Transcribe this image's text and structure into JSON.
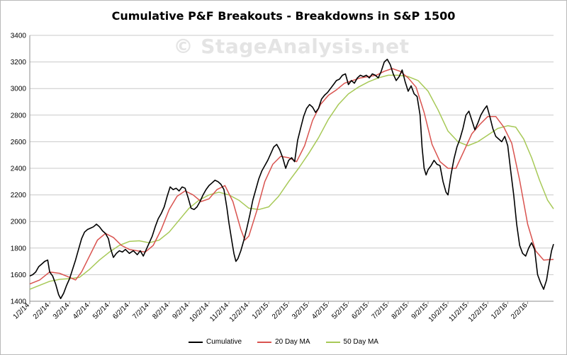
{
  "chart_data": {
    "type": "line",
    "title": "Cumulative P&F Breakouts - Breakdowns in S&P 1500",
    "watermark": "© StageAnalysis.net",
    "xlabel": "",
    "ylabel": "",
    "ylim": [
      1400,
      3400
    ],
    "yticks": [
      1400,
      1600,
      1800,
      2000,
      2200,
      2400,
      2600,
      2800,
      3000,
      3200,
      3400
    ],
    "grid": "horizontal",
    "legend_position": "bottom",
    "x_tick_labels": [
      "1/2/14",
      "2/2/14",
      "3/2/14",
      "4/2/14",
      "5/2/14",
      "6/2/14",
      "7/2/14",
      "8/2/14",
      "9/2/14",
      "10/2/14",
      "11/2/14",
      "12/2/14",
      "1/2/15",
      "2/2/15",
      "3/2/15",
      "4/2/15",
      "5/2/15",
      "6/2/15",
      "7/2/15",
      "8/2/15",
      "9/2/15",
      "10/2/15",
      "11/2/15",
      "12/2/15",
      "1/2/16",
      "2/2/16"
    ],
    "x_range_months": [
      0,
      26.3
    ],
    "series": [
      {
        "name": "Cumulative",
        "color": "#000000",
        "points": [
          [
            0,
            1590
          ],
          [
            0.15,
            1600
          ],
          [
            0.3,
            1620
          ],
          [
            0.45,
            1660
          ],
          [
            0.6,
            1680
          ],
          [
            0.75,
            1700
          ],
          [
            0.9,
            1710
          ],
          [
            1.0,
            1620
          ],
          [
            1.15,
            1590
          ],
          [
            1.3,
            1530
          ],
          [
            1.45,
            1450
          ],
          [
            1.55,
            1420
          ],
          [
            1.7,
            1460
          ],
          [
            1.85,
            1520
          ],
          [
            2.0,
            1570
          ],
          [
            2.15,
            1640
          ],
          [
            2.3,
            1710
          ],
          [
            2.45,
            1790
          ],
          [
            2.6,
            1870
          ],
          [
            2.75,
            1920
          ],
          [
            2.9,
            1940
          ],
          [
            3.05,
            1950
          ],
          [
            3.2,
            1960
          ],
          [
            3.35,
            1980
          ],
          [
            3.5,
            1960
          ],
          [
            3.65,
            1930
          ],
          [
            3.8,
            1910
          ],
          [
            3.95,
            1870
          ],
          [
            4.05,
            1800
          ],
          [
            4.2,
            1730
          ],
          [
            4.35,
            1760
          ],
          [
            4.5,
            1780
          ],
          [
            4.65,
            1770
          ],
          [
            4.8,
            1790
          ],
          [
            5.0,
            1760
          ],
          [
            5.2,
            1780
          ],
          [
            5.4,
            1750
          ],
          [
            5.55,
            1780
          ],
          [
            5.7,
            1740
          ],
          [
            5.85,
            1790
          ],
          [
            6.0,
            1840
          ],
          [
            6.15,
            1890
          ],
          [
            6.3,
            1960
          ],
          [
            6.45,
            2020
          ],
          [
            6.6,
            2060
          ],
          [
            6.75,
            2110
          ],
          [
            6.9,
            2190
          ],
          [
            7.05,
            2260
          ],
          [
            7.2,
            2240
          ],
          [
            7.35,
            2250
          ],
          [
            7.5,
            2230
          ],
          [
            7.65,
            2260
          ],
          [
            7.8,
            2250
          ],
          [
            7.95,
            2180
          ],
          [
            8.1,
            2100
          ],
          [
            8.25,
            2090
          ],
          [
            8.4,
            2110
          ],
          [
            8.55,
            2150
          ],
          [
            8.7,
            2200
          ],
          [
            8.85,
            2240
          ],
          [
            9.0,
            2270
          ],
          [
            9.15,
            2290
          ],
          [
            9.3,
            2310
          ],
          [
            9.45,
            2300
          ],
          [
            9.6,
            2280
          ],
          [
            9.75,
            2240
          ],
          [
            9.9,
            2100
          ],
          [
            10.0,
            1990
          ],
          [
            10.15,
            1850
          ],
          [
            10.25,
            1760
          ],
          [
            10.35,
            1700
          ],
          [
            10.45,
            1720
          ],
          [
            10.6,
            1780
          ],
          [
            10.75,
            1860
          ],
          [
            10.9,
            1950
          ],
          [
            11.05,
            2050
          ],
          [
            11.2,
            2160
          ],
          [
            11.35,
            2240
          ],
          [
            11.5,
            2320
          ],
          [
            11.65,
            2380
          ],
          [
            11.8,
            2420
          ],
          [
            11.95,
            2460
          ],
          [
            12.1,
            2510
          ],
          [
            12.25,
            2560
          ],
          [
            12.4,
            2580
          ],
          [
            12.55,
            2540
          ],
          [
            12.7,
            2480
          ],
          [
            12.85,
            2400
          ],
          [
            13.0,
            2460
          ],
          [
            13.15,
            2480
          ],
          [
            13.3,
            2450
          ],
          [
            13.45,
            2610
          ],
          [
            13.6,
            2700
          ],
          [
            13.75,
            2790
          ],
          [
            13.9,
            2850
          ],
          [
            14.05,
            2880
          ],
          [
            14.2,
            2860
          ],
          [
            14.35,
            2820
          ],
          [
            14.5,
            2850
          ],
          [
            14.65,
            2920
          ],
          [
            14.8,
            2950
          ],
          [
            14.95,
            2970
          ],
          [
            15.1,
            3000
          ],
          [
            15.25,
            3030
          ],
          [
            15.4,
            3060
          ],
          [
            15.55,
            3070
          ],
          [
            15.7,
            3100
          ],
          [
            15.85,
            3110
          ],
          [
            16.0,
            3030
          ],
          [
            16.15,
            3060
          ],
          [
            16.3,
            3040
          ],
          [
            16.45,
            3080
          ],
          [
            16.6,
            3100
          ],
          [
            16.75,
            3090
          ],
          [
            16.9,
            3100
          ],
          [
            17.05,
            3080
          ],
          [
            17.2,
            3110
          ],
          [
            17.35,
            3100
          ],
          [
            17.5,
            3080
          ],
          [
            17.65,
            3130
          ],
          [
            17.8,
            3200
          ],
          [
            17.95,
            3220
          ],
          [
            18.1,
            3180
          ],
          [
            18.25,
            3110
          ],
          [
            18.4,
            3060
          ],
          [
            18.55,
            3090
          ],
          [
            18.7,
            3140
          ],
          [
            18.85,
            3050
          ],
          [
            19.0,
            2980
          ],
          [
            19.15,
            3020
          ],
          [
            19.3,
            2960
          ],
          [
            19.45,
            2940
          ],
          [
            19.6,
            2800
          ],
          [
            19.7,
            2560
          ],
          [
            19.8,
            2400
          ],
          [
            19.9,
            2350
          ],
          [
            20.0,
            2390
          ],
          [
            20.15,
            2420
          ],
          [
            20.3,
            2460
          ],
          [
            20.45,
            2430
          ],
          [
            20.6,
            2420
          ],
          [
            20.75,
            2300
          ],
          [
            20.9,
            2220
          ],
          [
            21.0,
            2200
          ],
          [
            21.15,
            2350
          ],
          [
            21.3,
            2470
          ],
          [
            21.45,
            2560
          ],
          [
            21.6,
            2620
          ],
          [
            21.75,
            2700
          ],
          [
            21.9,
            2800
          ],
          [
            22.05,
            2830
          ],
          [
            22.2,
            2760
          ],
          [
            22.35,
            2690
          ],
          [
            22.5,
            2740
          ],
          [
            22.65,
            2800
          ],
          [
            22.8,
            2840
          ],
          [
            22.95,
            2870
          ],
          [
            23.1,
            2790
          ],
          [
            23.25,
            2700
          ],
          [
            23.4,
            2640
          ],
          [
            23.55,
            2620
          ],
          [
            23.7,
            2600
          ],
          [
            23.85,
            2640
          ],
          [
            24.0,
            2570
          ],
          [
            24.15,
            2380
          ],
          [
            24.3,
            2200
          ],
          [
            24.45,
            1980
          ],
          [
            24.6,
            1820
          ],
          [
            24.75,
            1760
          ],
          [
            24.9,
            1740
          ],
          [
            25.05,
            1800
          ],
          [
            25.2,
            1840
          ],
          [
            25.35,
            1790
          ],
          [
            25.5,
            1600
          ],
          [
            25.65,
            1540
          ],
          [
            25.8,
            1490
          ],
          [
            25.95,
            1560
          ],
          [
            26.1,
            1700
          ],
          [
            26.2,
            1780
          ],
          [
            26.3,
            1830
          ]
        ]
      },
      {
        "name": "20 Day MA",
        "color": "#d9534f",
        "points": [
          [
            0,
            1530
          ],
          [
            0.5,
            1560
          ],
          [
            1.0,
            1620
          ],
          [
            1.5,
            1610
          ],
          [
            2.0,
            1580
          ],
          [
            2.3,
            1560
          ],
          [
            2.6,
            1620
          ],
          [
            3.0,
            1740
          ],
          [
            3.4,
            1860
          ],
          [
            3.8,
            1910
          ],
          [
            4.2,
            1880
          ],
          [
            4.6,
            1820
          ],
          [
            5.0,
            1790
          ],
          [
            5.4,
            1780
          ],
          [
            5.8,
            1770
          ],
          [
            6.2,
            1820
          ],
          [
            6.6,
            1940
          ],
          [
            7.0,
            2090
          ],
          [
            7.4,
            2190
          ],
          [
            7.8,
            2230
          ],
          [
            8.2,
            2200
          ],
          [
            8.6,
            2150
          ],
          [
            9.0,
            2170
          ],
          [
            9.4,
            2240
          ],
          [
            9.8,
            2270
          ],
          [
            10.2,
            2150
          ],
          [
            10.6,
            1940
          ],
          [
            10.8,
            1860
          ],
          [
            11.0,
            1890
          ],
          [
            11.4,
            2080
          ],
          [
            11.8,
            2300
          ],
          [
            12.2,
            2430
          ],
          [
            12.6,
            2490
          ],
          [
            13.0,
            2480
          ],
          [
            13.4,
            2450
          ],
          [
            13.8,
            2570
          ],
          [
            14.2,
            2760
          ],
          [
            14.6,
            2880
          ],
          [
            15.0,
            2950
          ],
          [
            15.4,
            2990
          ],
          [
            15.8,
            3040
          ],
          [
            16.2,
            3060
          ],
          [
            16.6,
            3080
          ],
          [
            17.0,
            3090
          ],
          [
            17.4,
            3100
          ],
          [
            17.8,
            3130
          ],
          [
            18.2,
            3150
          ],
          [
            18.6,
            3130
          ],
          [
            19.0,
            3080
          ],
          [
            19.4,
            3010
          ],
          [
            19.8,
            2820
          ],
          [
            20.2,
            2580
          ],
          [
            20.6,
            2450
          ],
          [
            21.0,
            2400
          ],
          [
            21.4,
            2400
          ],
          [
            21.8,
            2530
          ],
          [
            22.2,
            2660
          ],
          [
            22.6,
            2730
          ],
          [
            23.0,
            2790
          ],
          [
            23.4,
            2790
          ],
          [
            23.8,
            2710
          ],
          [
            24.2,
            2590
          ],
          [
            24.6,
            2310
          ],
          [
            25.0,
            1980
          ],
          [
            25.4,
            1780
          ],
          [
            25.8,
            1710
          ],
          [
            26.3,
            1715
          ]
        ]
      },
      {
        "name": "50 Day MA",
        "color": "#a7c957",
        "points": [
          [
            0,
            1490
          ],
          [
            0.5,
            1520
          ],
          [
            1.0,
            1550
          ],
          [
            1.5,
            1565
          ],
          [
            2.0,
            1570
          ],
          [
            2.5,
            1580
          ],
          [
            3.0,
            1640
          ],
          [
            3.5,
            1710
          ],
          [
            4.0,
            1770
          ],
          [
            4.5,
            1820
          ],
          [
            5.0,
            1850
          ],
          [
            5.5,
            1855
          ],
          [
            6.0,
            1840
          ],
          [
            6.5,
            1860
          ],
          [
            7.0,
            1920
          ],
          [
            7.5,
            2010
          ],
          [
            8.0,
            2100
          ],
          [
            8.5,
            2160
          ],
          [
            9.0,
            2200
          ],
          [
            9.5,
            2220
          ],
          [
            10.0,
            2200
          ],
          [
            10.5,
            2160
          ],
          [
            11.0,
            2100
          ],
          [
            11.5,
            2090
          ],
          [
            12.0,
            2110
          ],
          [
            12.5,
            2190
          ],
          [
            13.0,
            2300
          ],
          [
            13.5,
            2400
          ],
          [
            14.0,
            2510
          ],
          [
            14.5,
            2630
          ],
          [
            15.0,
            2770
          ],
          [
            15.5,
            2880
          ],
          [
            16.0,
            2960
          ],
          [
            16.5,
            3010
          ],
          [
            17.0,
            3050
          ],
          [
            17.5,
            3080
          ],
          [
            18.0,
            3100
          ],
          [
            18.5,
            3100
          ],
          [
            19.0,
            3090
          ],
          [
            19.5,
            3060
          ],
          [
            20.0,
            2980
          ],
          [
            20.5,
            2840
          ],
          [
            21.0,
            2680
          ],
          [
            21.5,
            2600
          ],
          [
            22.0,
            2570
          ],
          [
            22.5,
            2600
          ],
          [
            23.0,
            2650
          ],
          [
            23.5,
            2700
          ],
          [
            24.0,
            2720
          ],
          [
            24.4,
            2710
          ],
          [
            24.8,
            2620
          ],
          [
            25.2,
            2480
          ],
          [
            25.6,
            2310
          ],
          [
            26.0,
            2160
          ],
          [
            26.3,
            2095
          ]
        ]
      }
    ]
  }
}
